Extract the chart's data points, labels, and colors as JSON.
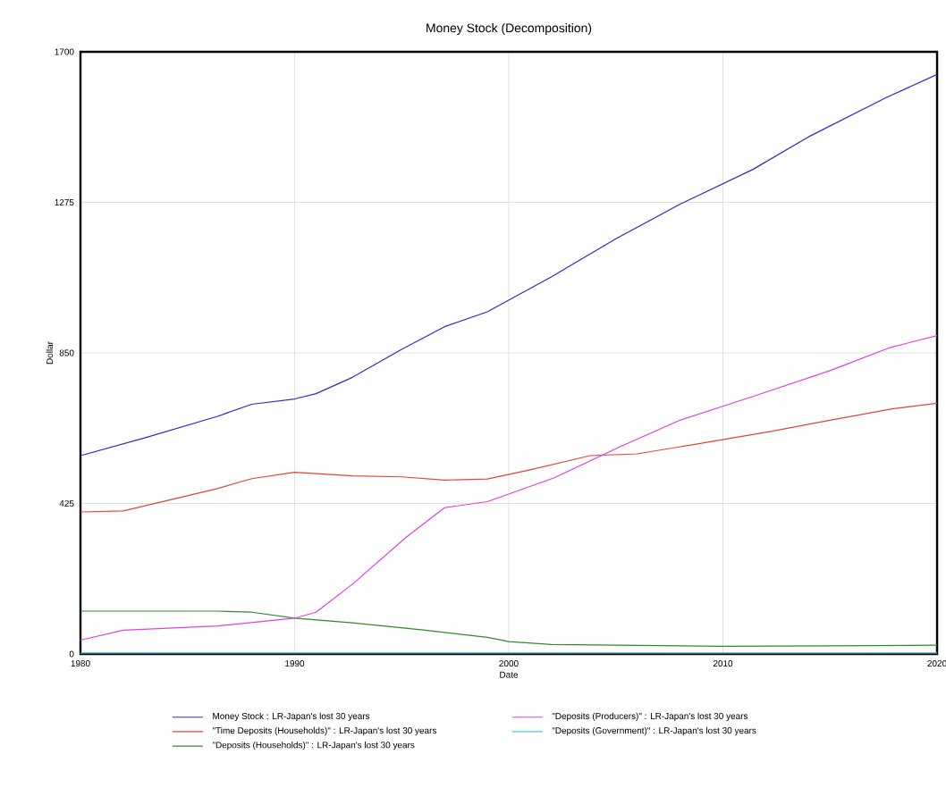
{
  "chart_data": {
    "type": "line",
    "title": "Money Stock (Decomposition)",
    "xlabel": "Date",
    "ylabel": "Dollar",
    "xlim": [
      1980,
      2020
    ],
    "xticks": [
      1980,
      1990,
      2000,
      2010,
      2020
    ],
    "ylim": [
      0,
      1700
    ],
    "yticks": [
      0,
      425,
      850,
      1275,
      1700
    ],
    "grid": true,
    "legend": "bottom",
    "series": [
      {
        "name": "Money Stock : LR-Japan's lost 30 years",
        "color": "#2b2bd0",
        "x": [
          1980,
          1983,
          1986.4,
          1988,
          1990,
          1991,
          1992.7,
          1995,
          1997,
          1999,
          2002,
          2005,
          2008,
          2011.4,
          2014,
          2017.6,
          2020
        ],
        "values": [
          560,
          610,
          671,
          705,
          720,
          735,
          781,
          860,
          924,
          966,
          1065,
          1172,
          1270,
          1368,
          1460,
          1570,
          1636
        ]
      },
      {
        "name": "\"Time Deposits (Households)\" : LR-Japan's lost 30 years",
        "color": "#e8413c",
        "x": [
          1980,
          1982,
          1986.4,
          1988,
          1990,
          1992.7,
          1995,
          1997,
          1999,
          2001,
          2003.8,
          2006,
          2009,
          2012.3,
          2015,
          2017.9,
          2020
        ],
        "values": [
          401,
          404,
          467,
          495,
          513,
          503,
          500,
          491,
          494,
          520,
          560,
          565,
          595,
          629,
          660,
          692,
          708
        ]
      },
      {
        "name": "\"Deposits (Households)\" : LR-Japan's lost 30 years",
        "color": "#2e8b2e",
        "x": [
          1980,
          1986.4,
          1988,
          1990,
          1992.7,
          1996,
          1999,
          2000,
          2002,
          2005,
          2010,
          2015,
          2020
        ],
        "values": [
          121,
          121,
          118,
          101,
          88,
          68,
          47,
          35,
          27,
          25,
          22,
          23,
          25
        ]
      },
      {
        "name": "\"Deposits (Producers)\" : LR-Japan's lost 30 years",
        "color": "#e040e0",
        "x": [
          1980,
          1982,
          1986.4,
          1990,
          1991,
          1992.7,
          1995.2,
          1997,
          1999,
          2002.1,
          2005.2,
          2008,
          2011.5,
          2015,
          2017.8,
          2020
        ],
        "values": [
          39,
          67,
          79,
          101,
          118,
          197,
          329,
          413,
          430,
          497,
          585,
          660,
          729,
          800,
          865,
          899
        ]
      },
      {
        "name": "\"Deposits (Government)\" : LR-Japan's lost 30 years",
        "color": "#40c8e8",
        "x": [
          1980,
          1990,
          2000,
          2010,
          2020
        ],
        "values": [
          3,
          3,
          3,
          3,
          3
        ]
      }
    ]
  }
}
